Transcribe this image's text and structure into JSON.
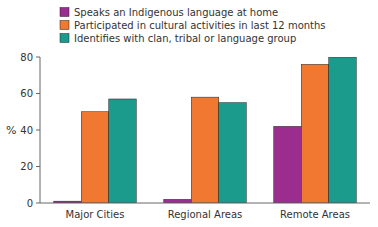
{
  "chart_data": {
    "type": "bar",
    "y_label": "%",
    "categories": [
      "Major Cities",
      "Regional Areas",
      "Remote Areas"
    ],
    "series": [
      {
        "name": "Speaks an Indigenous language at home",
        "color": "#9B2D8E",
        "values": [
          1,
          2,
          42
        ]
      },
      {
        "name": "Participated in cultural activities in last 12 months",
        "color": "#F07830",
        "values": [
          50,
          58,
          76
        ]
      },
      {
        "name": "Identifies with clan, tribal or language group",
        "color": "#1A9B8C",
        "values": [
          57,
          55,
          80
        ]
      }
    ],
    "ylim": [
      0,
      80
    ],
    "yticks": [
      0,
      20,
      40,
      60,
      80
    ],
    "grid": false,
    "legend": "top"
  }
}
